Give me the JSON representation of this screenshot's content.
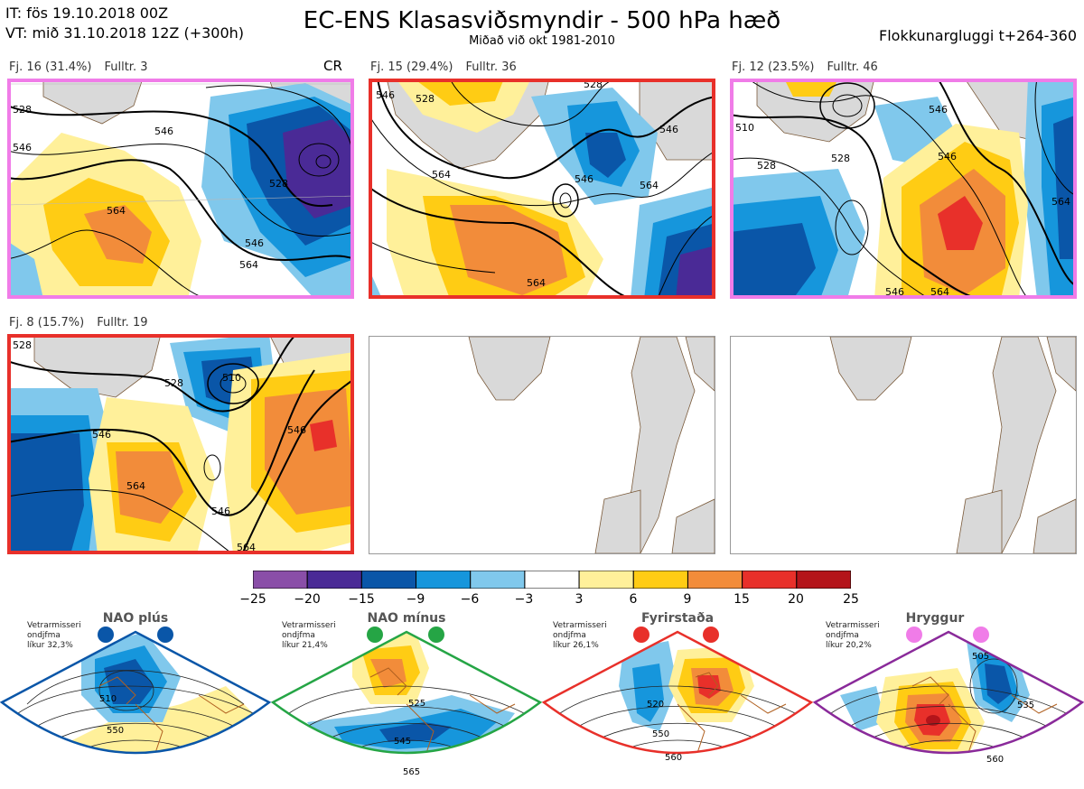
{
  "header": {
    "it": "IT: fös 19.10.2018 00Z",
    "vt": "VT: mið 31.10.2018 12Z  (+300h)",
    "title": "EC-ENS Klasasviðsmyndir - 500 hPa hæð",
    "subtitle": "Miðað við okt 1981-2010",
    "window": "Flokkunargluggi t+264-360"
  },
  "colors": {
    "pink": "#f07ce8",
    "red": "#e8302a",
    "blue": "#0a56a8",
    "green": "#25a545",
    "purple": "#8a2a9a",
    "land": "#d9d9d9",
    "coast": "#7a5a3a"
  },
  "clusters": [
    {
      "label": "Fj. 16 (31.4%)",
      "members": "Fulltr. 3",
      "tag": "CR",
      "frame": "pink",
      "contours": [
        "528",
        "546",
        "546",
        "564",
        "528",
        "546",
        "564"
      ]
    },
    {
      "label": "Fj. 15 (29.4%)",
      "members": "Fulltr. 36",
      "tag": "",
      "frame": "red",
      "contours": [
        "546",
        "528",
        "564",
        "528",
        "564",
        "546",
        "546",
        "564"
      ]
    },
    {
      "label": "Fj. 12 (23.5%)",
      "members": "Fulltr. 46",
      "tag": "",
      "frame": "pink",
      "contours": [
        "510",
        "528",
        "528",
        "546",
        "546",
        "564",
        "546",
        "564"
      ]
    },
    {
      "label": "Fj. 8 (15.7%)",
      "members": "Fulltr. 19",
      "tag": "",
      "frame": "red",
      "contours": [
        "528",
        "510",
        "528",
        "546",
        "546",
        "564",
        "546",
        "564"
      ]
    }
  ],
  "colorbar": {
    "colors": [
      "#8a4ea8",
      "#4a2a96",
      "#0a56a8",
      "#1696dc",
      "#80c8ec",
      "#ffffff",
      "#fff09a",
      "#ffcc14",
      "#f28c3a",
      "#e8302a",
      "#b4141a"
    ],
    "labels": [
      "−25",
      "−20",
      "−15",
      "−9",
      "−6",
      "−3",
      "3",
      "6",
      "9",
      "15",
      "20",
      "25"
    ]
  },
  "regimes": [
    {
      "title": "NAO plús",
      "note": [
        "Vetrarmisseri",
        "ondjfma",
        "líkur 32,3%"
      ],
      "color": "blue",
      "contours": [
        "510",
        "550"
      ]
    },
    {
      "title": "NAO mínus",
      "note": [
        "Vetrarmisseri",
        "ondjfma",
        "líkur 21,4%"
      ],
      "color": "green",
      "contours": [
        "525",
        "545",
        "565"
      ]
    },
    {
      "title": "Fyrirstaða",
      "note": [
        "Vetrarmisseri",
        "ondjfma",
        "líkur 26,1%"
      ],
      "color": "red",
      "contours": [
        "520",
        "550",
        "560"
      ]
    },
    {
      "title": "Hryggur",
      "note": [
        "Vetrarmisseri",
        "ondjfma",
        "líkur 20,2%"
      ],
      "color": "purple",
      "contours": [
        "505",
        "535",
        "560"
      ]
    }
  ]
}
